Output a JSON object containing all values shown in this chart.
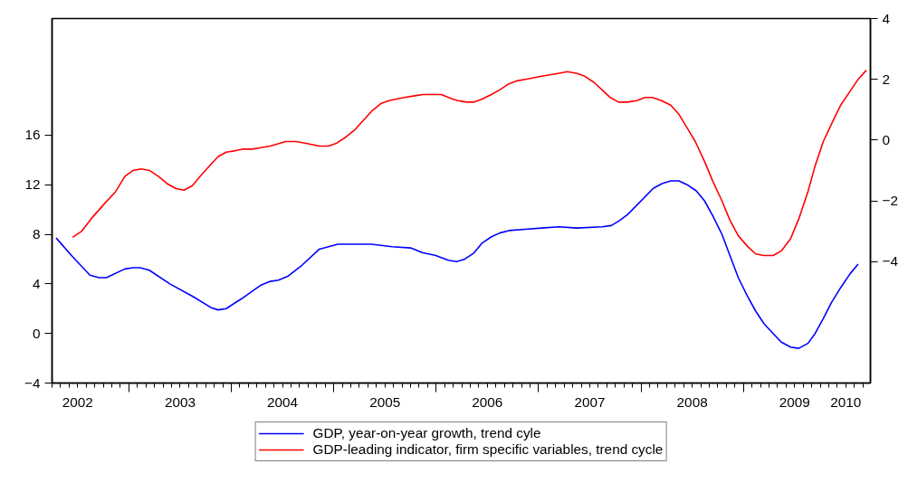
{
  "chart_data": {
    "type": "line",
    "xlim": [
      2002.25,
      2010.24
    ],
    "ylim": [
      -4,
      25.4
    ],
    "yticks": [
      -4,
      0,
      4,
      8,
      12,
      16
    ],
    "y2lim": [
      -8,
      4
    ],
    "y2ticks": [
      -4,
      -2,
      0,
      2,
      4
    ],
    "xticks": [
      {
        "value": 2003,
        "label": null
      },
      {
        "value": 2004,
        "label": null
      },
      {
        "value": 2005,
        "label": null
      },
      {
        "value": 2006,
        "label": null
      },
      {
        "value": 2007,
        "label": null
      },
      {
        "value": 2008,
        "label": null
      },
      {
        "value": 2009,
        "label": null
      },
      {
        "value": 2002.5,
        "label": "2002"
      },
      {
        "value": 2003.5,
        "label": "2003"
      },
      {
        "value": 2004.5,
        "label": "2004"
      },
      {
        "value": 2005.5,
        "label": "2005"
      },
      {
        "value": 2006.5,
        "label": "2006"
      },
      {
        "value": 2007.5,
        "label": "2007"
      },
      {
        "value": 2008.5,
        "label": "2008"
      },
      {
        "value": 2009.5,
        "label": "2009"
      },
      {
        "value": 2010,
        "label": "2010"
      }
    ],
    "grid": false,
    "legend": "bottom",
    "line_style": "solid",
    "marker": "none",
    "series": [
      {
        "name": "GDP, year-on-year growth, trend cyle",
        "color": "#0000ff",
        "x": [
          2002.29,
          2002.45,
          2002.62,
          2002.71,
          2002.78,
          2002.96,
          2003.04,
          2003.11,
          2003.2,
          2003.4,
          2003.62,
          2003.8,
          2003.87,
          2003.95,
          2004.1,
          2004.29,
          2004.38,
          2004.46,
          2004.55,
          2004.69,
          2004.86,
          2004.95,
          2005.04,
          2005.37,
          2005.57,
          2005.75,
          2005.87,
          2005.99,
          2006.12,
          2006.2,
          2006.28,
          2006.37,
          2006.45,
          2006.54,
          2006.62,
          2006.71,
          2006.87,
          2007.03,
          2007.2,
          2007.37,
          2007.62,
          2007.71,
          2007.79,
          2007.87,
          2008.12,
          2008.21,
          2008.29,
          2008.37,
          2008.45,
          2008.54,
          2008.62,
          2008.7,
          2008.79,
          2008.95,
          2009.04,
          2009.12,
          2009.2,
          2009.29,
          2009.37,
          2009.46,
          2009.54,
          2009.63,
          2009.7,
          2009.78,
          2009.86,
          2009.95,
          2010.04,
          2010.12
        ],
        "values": [
          7.7,
          6.2,
          4.7,
          4.5,
          4.5,
          5.2,
          5.3,
          5.3,
          5.1,
          4.0,
          3.0,
          2.1,
          1.9,
          2.0,
          2.8,
          3.9,
          4.2,
          4.3,
          4.6,
          5.5,
          6.8,
          7.0,
          7.2,
          7.2,
          7.0,
          6.9,
          6.5,
          6.3,
          5.9,
          5.8,
          6.0,
          6.5,
          7.3,
          7.8,
          8.1,
          8.3,
          8.4,
          8.5,
          8.6,
          8.5,
          8.6,
          8.7,
          9.1,
          9.6,
          11.7,
          12.1,
          12.3,
          12.3,
          12.0,
          11.5,
          10.7,
          9.5,
          8.0,
          4.5,
          3.0,
          1.8,
          0.8,
          0.0,
          -0.7,
          -1.1,
          -1.2,
          -0.8,
          0.0,
          1.2,
          2.5,
          3.7,
          4.8,
          5.6
        ]
      },
      {
        "name": "GDP-leading indicator, firm specific variables, trend cycle",
        "color": "#ff0000",
        "axis": "y2",
        "x": [
          2002.45,
          2002.54,
          2002.63,
          2002.76,
          2002.87,
          2002.96,
          2003.04,
          2003.12,
          2003.2,
          2003.29,
          2003.38,
          2003.46,
          2003.54,
          2003.62,
          2003.72,
          2003.87,
          2003.95,
          2004.04,
          2004.11,
          2004.2,
          2004.29,
          2004.38,
          2004.53,
          2004.63,
          2004.72,
          2004.86,
          2004.95,
          2005.03,
          2005.12,
          2005.21,
          2005.37,
          2005.46,
          2005.54,
          2005.69,
          2005.78,
          2005.87,
          2005.96,
          2006.05,
          2006.16,
          2006.21,
          2006.3,
          2006.37,
          2006.45,
          2006.54,
          2006.62,
          2006.71,
          2006.79,
          2006.87,
          2007.03,
          2007.2,
          2007.28,
          2007.37,
          2007.45,
          2007.54,
          2007.62,
          2007.7,
          2007.78,
          2007.87,
          2007.96,
          2008.04,
          2008.11,
          2008.2,
          2008.29,
          2008.37,
          2008.45,
          2008.53,
          2008.62,
          2008.7,
          2008.79,
          2008.87,
          2008.95,
          2009.04,
          2009.12,
          2009.2,
          2009.29,
          2009.37,
          2009.46,
          2009.54,
          2009.63,
          2009.7,
          2009.78,
          2009.87,
          2009.95,
          2010.04,
          2010.12,
          2010.2
        ],
        "values": [
          -3.2,
          -3.0,
          -2.6,
          -2.1,
          -1.7,
          -1.2,
          -1.0,
          -0.95,
          -1.0,
          -1.2,
          -1.45,
          -1.6,
          -1.65,
          -1.5,
          -1.1,
          -0.55,
          -0.4,
          -0.35,
          -0.3,
          -0.3,
          -0.25,
          -0.2,
          -0.05,
          -0.05,
          -0.1,
          -0.2,
          -0.2,
          -0.1,
          0.1,
          0.35,
          0.95,
          1.2,
          1.3,
          1.4,
          1.45,
          1.5,
          1.5,
          1.5,
          1.35,
          1.3,
          1.25,
          1.25,
          1.35,
          1.5,
          1.65,
          1.85,
          1.95,
          2.0,
          2.1,
          2.2,
          2.25,
          2.2,
          2.1,
          1.9,
          1.65,
          1.4,
          1.25,
          1.25,
          1.3,
          1.4,
          1.4,
          1.3,
          1.15,
          0.85,
          0.4,
          -0.05,
          -0.7,
          -1.35,
          -2.0,
          -2.65,
          -3.15,
          -3.5,
          -3.75,
          -3.8,
          -3.8,
          -3.65,
          -3.25,
          -2.6,
          -1.7,
          -0.85,
          -0.05,
          0.6,
          1.15,
          1.6,
          2.0,
          2.3
        ]
      }
    ]
  }
}
